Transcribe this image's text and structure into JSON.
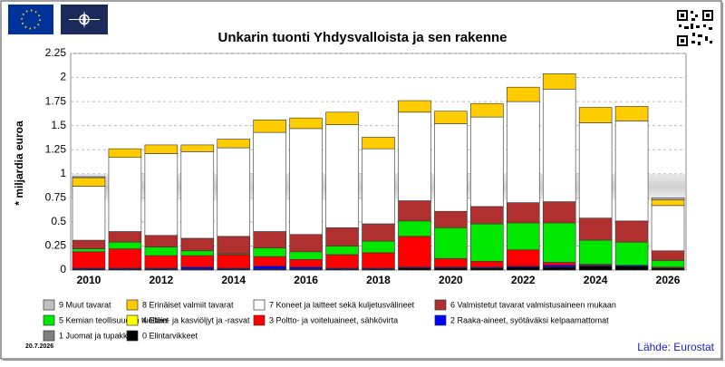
{
  "chart_data": {
    "type": "stacked-bar",
    "title": "Unkarin tuonti Yhdysvalloista ja sen rakenne",
    "y_label": "* miljardia euroa",
    "date": "20.7.2026",
    "source": "Lähde: Eurostat",
    "categories": [
      "2010",
      null,
      "2012",
      null,
      "2014",
      null,
      "2016",
      null,
      "2018",
      null,
      "2020",
      null,
      "2022",
      null,
      "2024",
      null,
      "2026"
    ],
    "ylim": [
      0,
      2.25
    ],
    "yticks": [
      0,
      0.25,
      0.5,
      0.75,
      1,
      1.25,
      1.5,
      1.75,
      2,
      2.25
    ],
    "grid": true,
    "series": [
      {
        "name": "0 Elintarvikkeet",
        "color": "#000000",
        "values": [
          0.01,
          0.01,
          0.01,
          0.01,
          0.01,
          0.01,
          0.01,
          0.01,
          0.01,
          0.02,
          0.02,
          0.02,
          0.03,
          0.03,
          0.04,
          0.04,
          0.02
        ]
      },
      {
        "name": "1 Juomat ja tupakka",
        "color": "#808080",
        "values": [
          0,
          0,
          0,
          0,
          0,
          0,
          0,
          0,
          0,
          0,
          0,
          0,
          0,
          0,
          0,
          0,
          0
        ]
      },
      {
        "name": "2 Raaka-aineet, syötäväksi kelpaamattomat",
        "color": "#0000ff",
        "values": [
          0.01,
          0.01,
          0.01,
          0.02,
          0.01,
          0.03,
          0.02,
          0.01,
          0.01,
          0.01,
          0.01,
          0.01,
          0.01,
          0.02,
          0.01,
          0.01,
          0
        ]
      },
      {
        "name": "3 Poltto- ja voiteluaineet, sähkövirta",
        "color": "#ff0000",
        "values": [
          0.17,
          0.2,
          0.13,
          0.12,
          0.14,
          0.1,
          0.08,
          0.14,
          0.16,
          0.32,
          0.09,
          0.06,
          0.17,
          0.03,
          0.01,
          0,
          0.01
        ]
      },
      {
        "name": "4 Eläin- ja kasviöljyt ja -rasvat",
        "color": "#ffff00",
        "values": [
          0,
          0,
          0,
          0,
          0,
          0,
          0,
          0,
          0,
          0,
          0,
          0,
          0,
          0,
          0,
          0,
          0
        ]
      },
      {
        "name": "5 Kemian teollisuuden tuotteet",
        "color": "#00e800",
        "values": [
          0.03,
          0.07,
          0.09,
          0.05,
          0.01,
          0.09,
          0.08,
          0.09,
          0.12,
          0.16,
          0.32,
          0.39,
          0.28,
          0.41,
          0.25,
          0.24,
          0.07
        ]
      },
      {
        "name": "6 Valmistetut tavarat valmistusaineen mukaan",
        "color": "#b03030",
        "values": [
          0.09,
          0.11,
          0.12,
          0.13,
          0.18,
          0.17,
          0.18,
          0.19,
          0.18,
          0.21,
          0.17,
          0.18,
          0.21,
          0.22,
          0.23,
          0.22,
          0.1
        ]
      },
      {
        "name": "7 Koneet ja laitteet sekä kuljetusvälineet",
        "color": "#ffffff",
        "values": [
          0.56,
          0.77,
          0.85,
          0.9,
          0.92,
          1.03,
          1.1,
          1.07,
          0.78,
          0.92,
          0.91,
          0.93,
          1.05,
          1.17,
          0.99,
          1.04,
          0.47
        ]
      },
      {
        "name": "8 Erinäiset valmiit tavarat",
        "color": "#ffcc00",
        "values": [
          0.09,
          0.09,
          0.09,
          0.07,
          0.09,
          0.13,
          0.11,
          0.13,
          0.12,
          0.12,
          0.13,
          0.14,
          0.15,
          0.16,
          0.16,
          0.15,
          0.06
        ]
      },
      {
        "name": "9 Muut tavarat",
        "color": "#c0c0c0",
        "values": [
          0.01,
          0,
          0,
          0,
          0,
          0,
          0,
          0,
          0,
          0,
          0,
          0,
          0,
          0,
          0,
          0,
          0.02
        ]
      }
    ]
  }
}
